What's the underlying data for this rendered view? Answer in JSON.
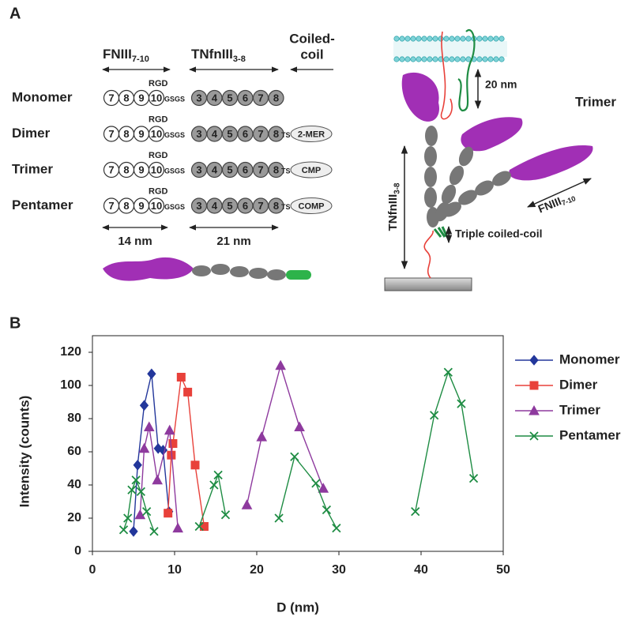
{
  "panel_labels": [
    "A",
    "B"
  ],
  "diagram": {
    "headers": {
      "fn": {
        "text": "FNIII",
        "sub": "7-10"
      },
      "tn": {
        "text": "TNfnIII",
        "sub": "3-8"
      },
      "coil": [
        "Coiled-",
        "coil"
      ]
    },
    "rows": [
      {
        "name": "Monomer",
        "rgd": "RGD",
        "fn_domains": [
          "7",
          "8",
          "9",
          "10"
        ],
        "linker": "GSGS",
        "tn_domains": [
          "3",
          "4",
          "5",
          "6",
          "7",
          "8"
        ]
      },
      {
        "name": "Dimer",
        "rgd": "RGD",
        "fn_domains": [
          "7",
          "8",
          "9",
          "10"
        ],
        "linker": "GSGS",
        "tn_domains": [
          "3",
          "4",
          "5",
          "6",
          "7",
          "8"
        ],
        "ts": "TS",
        "coil": "2-MER"
      },
      {
        "name": "Trimer",
        "rgd": "RGD",
        "fn_domains": [
          "7",
          "8",
          "9",
          "10"
        ],
        "linker": "GSGS",
        "tn_domains": [
          "3",
          "4",
          "5",
          "6",
          "7",
          "8"
        ],
        "ts": "TS",
        "coil": "CMP"
      },
      {
        "name": "Pentamer",
        "rgd": "RGD",
        "fn_domains": [
          "7",
          "8",
          "9",
          "10"
        ],
        "linker": "GSGS",
        "tn_domains": [
          "3",
          "4",
          "5",
          "6",
          "7",
          "8"
        ],
        "ts": "TS",
        "coil": "COMP"
      }
    ],
    "scale": [
      "14 nm",
      "21 nm"
    ],
    "trimer_model": {
      "distance": "20 nm",
      "title": "Trimer",
      "tn_label": {
        "text": "TNfnIII",
        "sub": "3-8"
      },
      "fn_label": {
        "text": "FNIII",
        "sub": "7-10"
      },
      "coil_label": "Triple coiled-coil"
    }
  },
  "chart_data": {
    "type": "line",
    "x_label": "D (nm)",
    "y_label": "Intensity (counts)",
    "xlim": [
      0,
      50
    ],
    "xticks": [
      0,
      10,
      20,
      30,
      40,
      50
    ],
    "ylim": [
      0,
      130
    ],
    "yticks": [
      0,
      20,
      40,
      60,
      80,
      100,
      120
    ],
    "grid": false,
    "legend": "right",
    "series": [
      {
        "name": "Monomer",
        "color": "#23379b",
        "marker": "diamond",
        "x": [
          5.0,
          5.5,
          6.3,
          7.2,
          8.0,
          8.6,
          9.3
        ],
        "values": [
          12,
          52,
          88,
          107,
          62,
          61,
          24
        ]
      },
      {
        "name": "Dimer",
        "color": "#e8413a",
        "marker": "square",
        "x": [
          9.2,
          9.6,
          9.8,
          10.8,
          11.6,
          12.5,
          13.6
        ],
        "values": [
          23,
          58,
          65,
          105,
          96,
          52,
          15
        ]
      },
      {
        "name": "Trimer",
        "color": "#8e3a9e",
        "marker": "triangle",
        "x": [
          5.8,
          6.3,
          6.9,
          7.9,
          9.4,
          10.4,
          null,
          18.8,
          20.6,
          22.9,
          25.2,
          28.1
        ],
        "values": [
          22,
          62,
          75,
          43,
          73,
          14,
          null,
          28,
          69,
          112,
          75,
          38
        ]
      },
      {
        "name": "Pentamer",
        "color": "#1e8c43",
        "marker": "x",
        "x": [
          3.8,
          4.3,
          4.8,
          5.3,
          5.9,
          6.6,
          7.5,
          null,
          13.0,
          14.8,
          15.3,
          16.2,
          null,
          22.7,
          24.6,
          27.2,
          28.5,
          29.7,
          null,
          39.3,
          41.6,
          43.3,
          44.9,
          46.4
        ],
        "values": [
          13,
          20,
          37,
          43,
          36,
          24,
          12,
          null,
          15,
          40,
          46,
          22,
          null,
          20,
          57,
          41,
          25,
          14,
          null,
          24,
          82,
          108,
          89,
          44
        ]
      }
    ]
  }
}
